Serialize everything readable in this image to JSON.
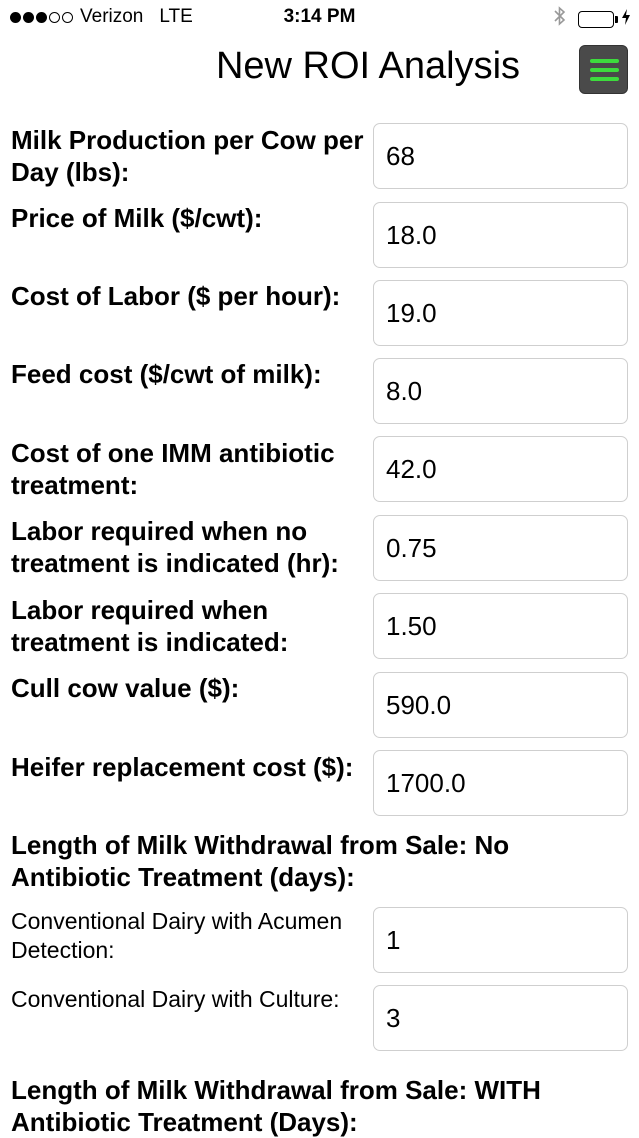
{
  "status_bar": {
    "carrier": "Verizon",
    "network": "LTE",
    "time": "3:14 PM",
    "signal_icon": "signal-dots-icon",
    "bluetooth_icon": "bluetooth-icon",
    "battery_icon": "battery-icon",
    "battery_level": 1.0,
    "charging_icon": "charging-bolt-icon"
  },
  "nav": {
    "title": "New ROI Analysis",
    "menu_icon": "hamburger-menu-icon",
    "menu_icon_color": "#3ddc3d",
    "menu_button_color": "#4a4a4a"
  },
  "fields": [
    {
      "label": "Milk Production per Cow per Day (lbs):",
      "value": "68"
    },
    {
      "label": "Price of Milk ($/cwt):",
      "value": "18.0"
    },
    {
      "label": "Cost of Labor ($ per hour):",
      "value": "19.0"
    },
    {
      "label": "Feed cost ($/cwt of milk):",
      "value": "8.0"
    },
    {
      "label": "Cost of one IMM antibiotic treatment:",
      "value": "42.0"
    },
    {
      "label": "Labor required when no treatment is indicated (hr):",
      "value": "0.75"
    },
    {
      "label": "Labor required when treatment is indicated:",
      "value": "1.50"
    },
    {
      "label": "Cull cow value ($):",
      "value": "590.0"
    },
    {
      "label": "Heifer replacement cost ($):",
      "value": "1700.0"
    }
  ],
  "section_no_treatment": {
    "header": "Length of Milk Withdrawal from Sale: No Antibiotic Treatment (days):",
    "fields": [
      {
        "label": "Conventional Dairy with Acumen Detection:",
        "value": "1"
      },
      {
        "label": "Conventional Dairy with Culture:",
        "value": "3"
      }
    ]
  },
  "section_with_treatment": {
    "header": "Length of Milk Withdrawal from Sale: WITH Antibiotic Treatment (Days):"
  }
}
